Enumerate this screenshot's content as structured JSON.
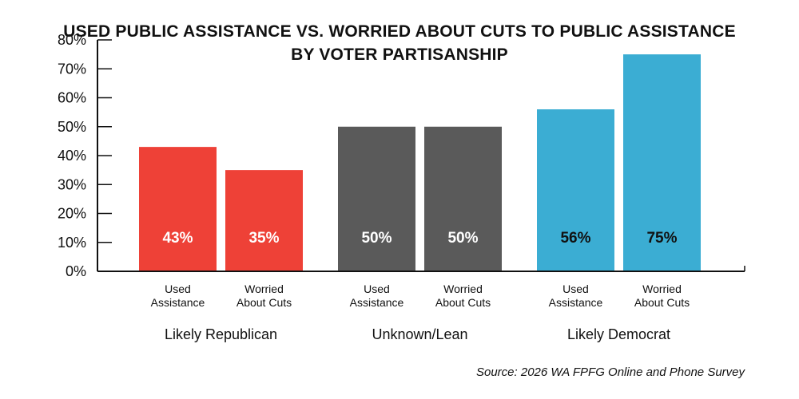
{
  "title_line1": "USED PUBLIC ASSISTANCE VS. WORRIED ABOUT CUTS TO PUBLIC ASSISTANCE",
  "title_line2": "BY VOTER PARTISANSHIP",
  "source": "Source: 2026 WA FPFG Online and Phone Survey",
  "chart_data": {
    "type": "bar",
    "title": "USED PUBLIC ASSISTANCE VS. WORRIED ABOUT CUTS TO PUBLIC ASSISTANCE BY VOTER PARTISANSHIP",
    "y_ticks": [
      "0%",
      "10%",
      "20%",
      "30%",
      "40%",
      "50%",
      "60%",
      "70%",
      "80%"
    ],
    "ylim": [
      0,
      80
    ],
    "grid": false,
    "legend": "none",
    "groups": [
      {
        "name": "Likely Republican",
        "color": "#ee4137",
        "label_color": "#ffffff",
        "bars": [
          {
            "label": [
              "Used",
              "Assistance"
            ],
            "value": 43,
            "text": "43%"
          },
          {
            "label": [
              "Worried",
              "About Cuts"
            ],
            "value": 35,
            "text": "35%"
          }
        ]
      },
      {
        "name": "Unknown/Lean",
        "color": "#5a5a5a",
        "label_color": "#ffffff",
        "bars": [
          {
            "label": [
              "Used",
              "Assistance"
            ],
            "value": 50,
            "text": "50%"
          },
          {
            "label": [
              "Worried",
              "About Cuts"
            ],
            "value": 50,
            "text": "50%"
          }
        ]
      },
      {
        "name": "Likely Democrat",
        "color": "#3badd3",
        "label_color": "#111111",
        "bars": [
          {
            "label": [
              "Used",
              "Assistance"
            ],
            "value": 56,
            "text": "56%"
          },
          {
            "label": [
              "Worried",
              "About Cuts"
            ],
            "value": 75,
            "text": "75%"
          }
        ]
      }
    ]
  }
}
